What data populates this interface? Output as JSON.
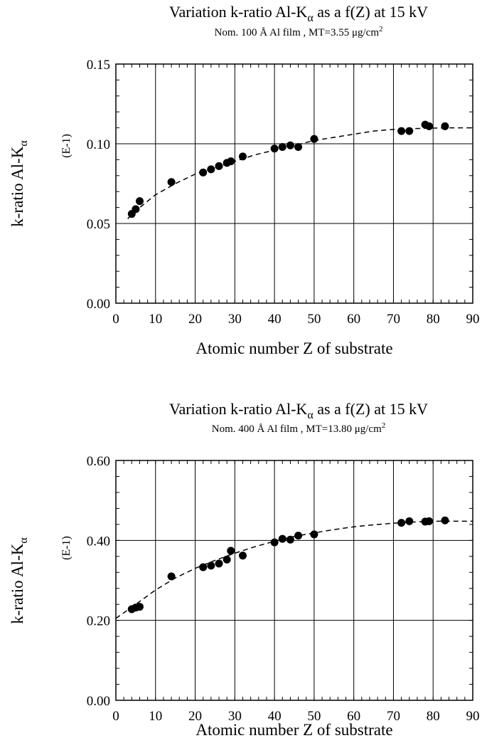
{
  "chart_data": [
    {
      "type": "scatter",
      "title": "Variation k-ratio Al-K",
      "title_sub": "α",
      "title_tail": " as a f(Z) at 15 kV",
      "subtitle": "Nom. 100 Å Al film , MT=3.55 μg/cm",
      "subtitle_sup": "2",
      "xlabel": "Atomic number Z of substrate",
      "ylabel": "k-ratio Al-K",
      "ylabel_sub": "α",
      "unit_label": "(E-1)",
      "xlim": [
        0,
        90
      ],
      "ylim": [
        0,
        0.15
      ],
      "x_ticks": [
        "0",
        "10",
        "20",
        "30",
        "40",
        "50",
        "60",
        "70",
        "80",
        "90"
      ],
      "y_ticks": [
        "0.00",
        "0.05",
        "0.10",
        "0.15"
      ],
      "grid": true,
      "series": [
        {
          "x": [
            4,
            5,
            6,
            14,
            22,
            24,
            26,
            28,
            29,
            32,
            40,
            42,
            44,
            46,
            50,
            72,
            74,
            78,
            79,
            83
          ],
          "y": [
            0.056,
            0.059,
            0.064,
            0.076,
            0.082,
            0.084,
            0.086,
            0.088,
            0.089,
            0.092,
            0.097,
            0.098,
            0.099,
            0.098,
            0.103,
            0.108,
            0.108,
            0.112,
            0.111,
            0.111
          ]
        }
      ],
      "fit_curve": {
        "x": [
          3,
          5,
          10,
          15,
          20,
          25,
          30,
          35,
          40,
          45,
          50,
          55,
          60,
          65,
          70,
          75,
          80,
          85,
          90
        ],
        "y": [
          0.053,
          0.058,
          0.068,
          0.075,
          0.081,
          0.085,
          0.089,
          0.093,
          0.096,
          0.099,
          0.102,
          0.104,
          0.106,
          0.108,
          0.109,
          0.1095,
          0.1098,
          0.11,
          0.11
        ]
      }
    },
    {
      "type": "scatter",
      "title": "Variation k-ratio Al-K",
      "title_sub": "α",
      "title_tail": " as a f(Z) at 15 kV",
      "subtitle": "Nom. 400 Å Al film , MT=13.80 μg/cm",
      "subtitle_sup": "2",
      "xlabel": "Atomic number Z of substrate",
      "ylabel": "k-ratio Al-K",
      "ylabel_sub": "α",
      "unit_label": "(E-1)",
      "xlim": [
        0,
        90
      ],
      "ylim": [
        0,
        0.6
      ],
      "x_ticks": [
        "0",
        "10",
        "20",
        "30",
        "40",
        "50",
        "60",
        "70",
        "80",
        "90"
      ],
      "y_ticks": [
        "0.00",
        "0.20",
        "0.40",
        "0.60"
      ],
      "grid": true,
      "series": [
        {
          "x": [
            4,
            5,
            6,
            14,
            22,
            24,
            26,
            28,
            29,
            32,
            40,
            42,
            44,
            46,
            50,
            72,
            74,
            78,
            79,
            83
          ],
          "y": [
            0.228,
            0.232,
            0.234,
            0.31,
            0.333,
            0.337,
            0.342,
            0.352,
            0.374,
            0.362,
            0.395,
            0.404,
            0.402,
            0.412,
            0.415,
            0.444,
            0.448,
            0.447,
            0.448,
            0.45
          ]
        }
      ],
      "fit_curve": {
        "x": [
          0,
          5,
          10,
          15,
          20,
          25,
          30,
          35,
          40,
          45,
          50,
          55,
          60,
          65,
          70,
          75,
          80,
          85,
          90
        ],
        "y": [
          0.205,
          0.24,
          0.276,
          0.306,
          0.33,
          0.35,
          0.368,
          0.384,
          0.398,
          0.41,
          0.419,
          0.427,
          0.434,
          0.439,
          0.443,
          0.446,
          0.448,
          0.448,
          0.448
        ]
      }
    }
  ]
}
